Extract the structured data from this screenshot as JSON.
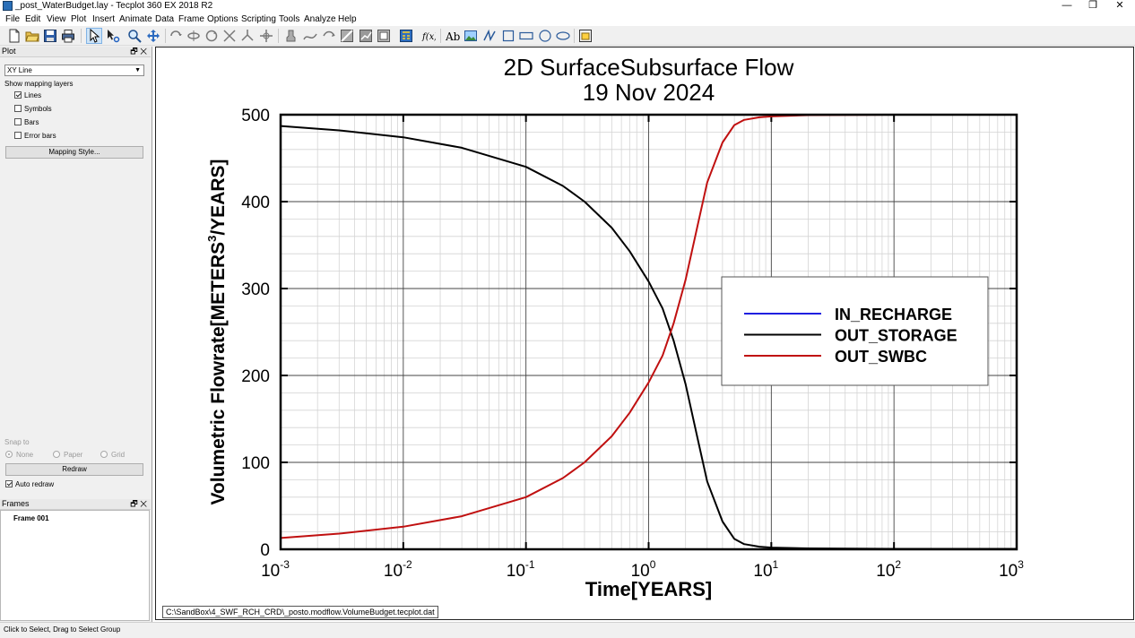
{
  "window": {
    "title": "_post_WaterBudget.lay - Tecplot 360 EX 2018 R2"
  },
  "menu": [
    "File",
    "Edit",
    "View",
    "Plot",
    "Insert",
    "Animate",
    "Data",
    "Frame",
    "Options",
    "Scripting",
    "Tools",
    "Analyze",
    "Help"
  ],
  "plot_panel": {
    "header": "Plot",
    "plot_type": "XY Line",
    "mapping_layers_label": "Show mapping layers",
    "layers": [
      {
        "label": "Lines",
        "checked": true
      },
      {
        "label": "Symbols",
        "checked": false
      },
      {
        "label": "Bars",
        "checked": false
      },
      {
        "label": "Error bars",
        "checked": false
      }
    ],
    "mapping_style_button": "Mapping Style...",
    "snap_label": "Snap to",
    "snap_options": [
      {
        "label": "None",
        "selected": true
      },
      {
        "label": "Paper",
        "selected": false
      },
      {
        "label": "Grid",
        "selected": false
      }
    ],
    "redraw_button": "Redraw",
    "auto_redraw_label": "Auto redraw",
    "auto_redraw": true
  },
  "frames_panel": {
    "header": "Frames",
    "items": [
      "Frame 001"
    ]
  },
  "file_path": "C:\\SandBox\\4_SWF_RCH_CRD\\_posto.modflow.VolumeBudget.tecplot.dat",
  "status": "Click to Select, Drag to Select Group",
  "chart_data": {
    "type": "line",
    "title": "2D SurfaceSubsurface Flow",
    "subtitle": "19 Nov 2024",
    "xlabel": "Time[YEARS]",
    "ylabel_prefix": "Volumetric Flowrate[METERS",
    "ylabel_sup": "3",
    "ylabel_suffix": "/YEARS]",
    "x_scale": "log",
    "xlim": [
      0.001,
      1000
    ],
    "ylim": [
      0,
      500
    ],
    "y_ticks": [
      0,
      100,
      200,
      300,
      400,
      500
    ],
    "x_tick_base": "10",
    "x_tick_exponents": [
      "-3",
      "-2",
      "-1",
      "0",
      "1",
      "2",
      "3"
    ],
    "grid": true,
    "legend_position": "right",
    "series": [
      {
        "name": "IN_RECHARGE",
        "color": "#2020e0",
        "x": [
          0.001,
          1000
        ],
        "y": [
          500,
          500
        ]
      },
      {
        "name": "OUT_STORAGE",
        "color": "#000000",
        "x": [
          0.001,
          0.003,
          0.01,
          0.03,
          0.1,
          0.2,
          0.3,
          0.5,
          0.7,
          1,
          1.3,
          1.6,
          2,
          2.5,
          3,
          4,
          5,
          6,
          8,
          10,
          20,
          100,
          1000
        ],
        "y": [
          487,
          482,
          474,
          462,
          440,
          418,
          400,
          370,
          343,
          308,
          277,
          240,
          190,
          128,
          78,
          32,
          12,
          6,
          3,
          2,
          1,
          0.5,
          0.5
        ]
      },
      {
        "name": "OUT_SWBC",
        "color": "#c01010",
        "x": [
          0.001,
          0.003,
          0.01,
          0.03,
          0.1,
          0.2,
          0.3,
          0.5,
          0.7,
          1,
          1.3,
          1.6,
          2,
          2.5,
          3,
          4,
          5,
          6,
          8,
          10,
          20,
          100,
          1000
        ],
        "y": [
          13,
          18,
          26,
          38,
          60,
          82,
          100,
          130,
          157,
          192,
          223,
          260,
          310,
          372,
          422,
          468,
          488,
          494,
          497,
          498,
          499.5,
          500,
          500
        ]
      }
    ]
  }
}
